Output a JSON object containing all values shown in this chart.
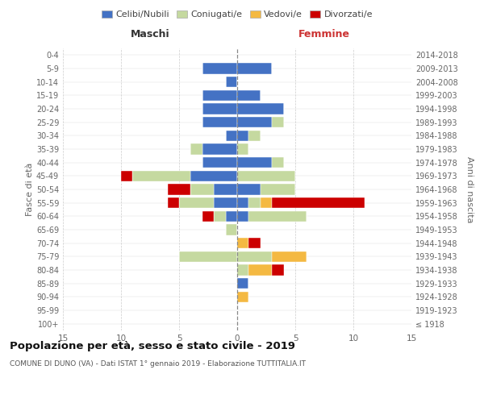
{
  "age_groups": [
    "100+",
    "95-99",
    "90-94",
    "85-89",
    "80-84",
    "75-79",
    "70-74",
    "65-69",
    "60-64",
    "55-59",
    "50-54",
    "45-49",
    "40-44",
    "35-39",
    "30-34",
    "25-29",
    "20-24",
    "15-19",
    "10-14",
    "5-9",
    "0-4"
  ],
  "birth_years": [
    "≤ 1918",
    "1919-1923",
    "1924-1928",
    "1929-1933",
    "1934-1938",
    "1939-1943",
    "1944-1948",
    "1949-1953",
    "1954-1958",
    "1959-1963",
    "1964-1968",
    "1969-1973",
    "1974-1978",
    "1979-1983",
    "1984-1988",
    "1989-1993",
    "1994-1998",
    "1999-2003",
    "2004-2008",
    "2009-2013",
    "2014-2018"
  ],
  "maschi": {
    "celibi": [
      0,
      0,
      0,
      0,
      0,
      0,
      0,
      0,
      1,
      2,
      2,
      4,
      3,
      3,
      1,
      3,
      3,
      3,
      1,
      3,
      0
    ],
    "coniugati": [
      0,
      0,
      0,
      0,
      0,
      5,
      0,
      1,
      1,
      3,
      2,
      5,
      0,
      1,
      0,
      0,
      0,
      0,
      0,
      0,
      0
    ],
    "vedovi": [
      0,
      0,
      0,
      0,
      0,
      0,
      0,
      0,
      0,
      0,
      0,
      0,
      0,
      0,
      0,
      0,
      0,
      0,
      0,
      0,
      0
    ],
    "divorziati": [
      0,
      0,
      0,
      0,
      0,
      0,
      0,
      0,
      1,
      1,
      2,
      1,
      0,
      0,
      0,
      0,
      0,
      0,
      0,
      0,
      0
    ]
  },
  "femmine": {
    "nubili": [
      0,
      0,
      0,
      1,
      0,
      0,
      0,
      0,
      1,
      1,
      2,
      0,
      3,
      0,
      1,
      3,
      4,
      2,
      0,
      3,
      0
    ],
    "coniugate": [
      0,
      0,
      0,
      0,
      1,
      3,
      0,
      0,
      5,
      1,
      3,
      5,
      1,
      1,
      1,
      1,
      0,
      0,
      0,
      0,
      0
    ],
    "vedove": [
      0,
      0,
      1,
      0,
      2,
      3,
      1,
      0,
      0,
      1,
      0,
      0,
      0,
      0,
      0,
      0,
      0,
      0,
      0,
      0,
      0
    ],
    "divorziate": [
      0,
      0,
      0,
      0,
      1,
      0,
      1,
      0,
      0,
      8,
      0,
      0,
      0,
      0,
      0,
      0,
      0,
      0,
      0,
      0,
      0
    ]
  },
  "colors": {
    "celibi_nubili": "#4472c4",
    "coniugati": "#c5d9a0",
    "vedovi": "#f4b942",
    "divorziati": "#cc0000"
  },
  "xlim": 15,
  "title": "Popolazione per età, sesso e stato civile - 2019",
  "subtitle": "COMUNE DI DUNO (VA) - Dati ISTAT 1° gennaio 2019 - Elaborazione TUTTITALIA.IT",
  "ylabel_left": "Fasce di età",
  "ylabel_right": "Anni di nascita",
  "xlabel_maschi": "Maschi",
  "xlabel_femmine": "Femmine",
  "bg_color": "#ffffff",
  "grid_color": "#cccccc"
}
